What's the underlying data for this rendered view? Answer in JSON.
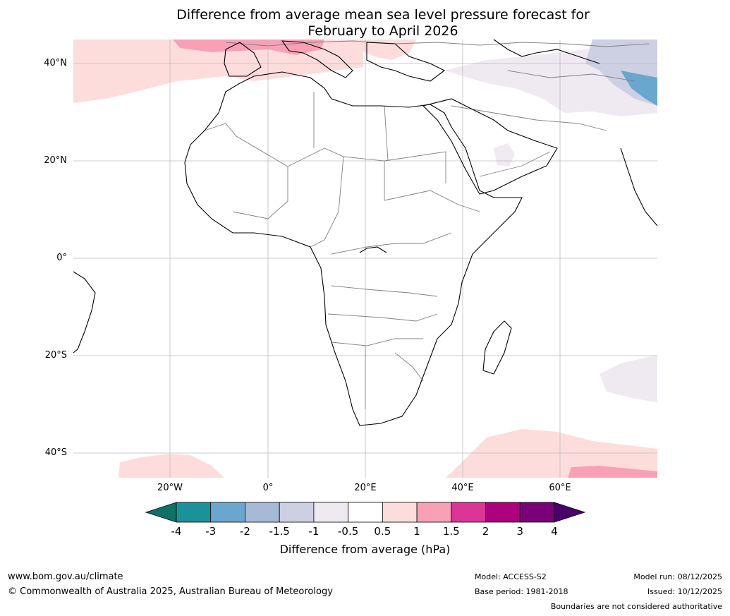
{
  "title": {
    "line1": "Difference from average mean sea level pressure forecast for",
    "line2": "February to April 2026"
  },
  "latitude_labels": [
    "40°N",
    "20°N",
    "0°",
    "20°S",
    "40°S"
  ],
  "longitude_labels": [
    "20°W",
    "0°",
    "20°E",
    "40°E",
    "60°E"
  ],
  "colorbar": {
    "label": "Difference from average (hPa)",
    "ticks": [
      "-4",
      "-3",
      "-2",
      "-1.5",
      "-1",
      "-0.5",
      "0.5",
      "1",
      "1.5",
      "2",
      "3",
      "4"
    ],
    "colors": [
      "#0e7266",
      "#1b9199",
      "#6aa7cf",
      "#a6bad7",
      "#cdcfe3",
      "#efeaf1",
      "#ffffff",
      "#fddcdc",
      "#f8a0b6",
      "#dd3497",
      "#ad017e",
      "#7a0177",
      "#49006a"
    ]
  },
  "footer": {
    "website": "www.bom.gov.au/climate",
    "copyright": "© Commonwealth of Australia 2025, Australian Bureau of Meteorology",
    "model": "Model: ACCESS-S2",
    "base_period": "Base period: 1981-2018",
    "model_run": "Model run: 08/12/2025",
    "issued": "Issued: 10/12/2025",
    "disclaimer": "Boundaries are not considered authoritative"
  }
}
